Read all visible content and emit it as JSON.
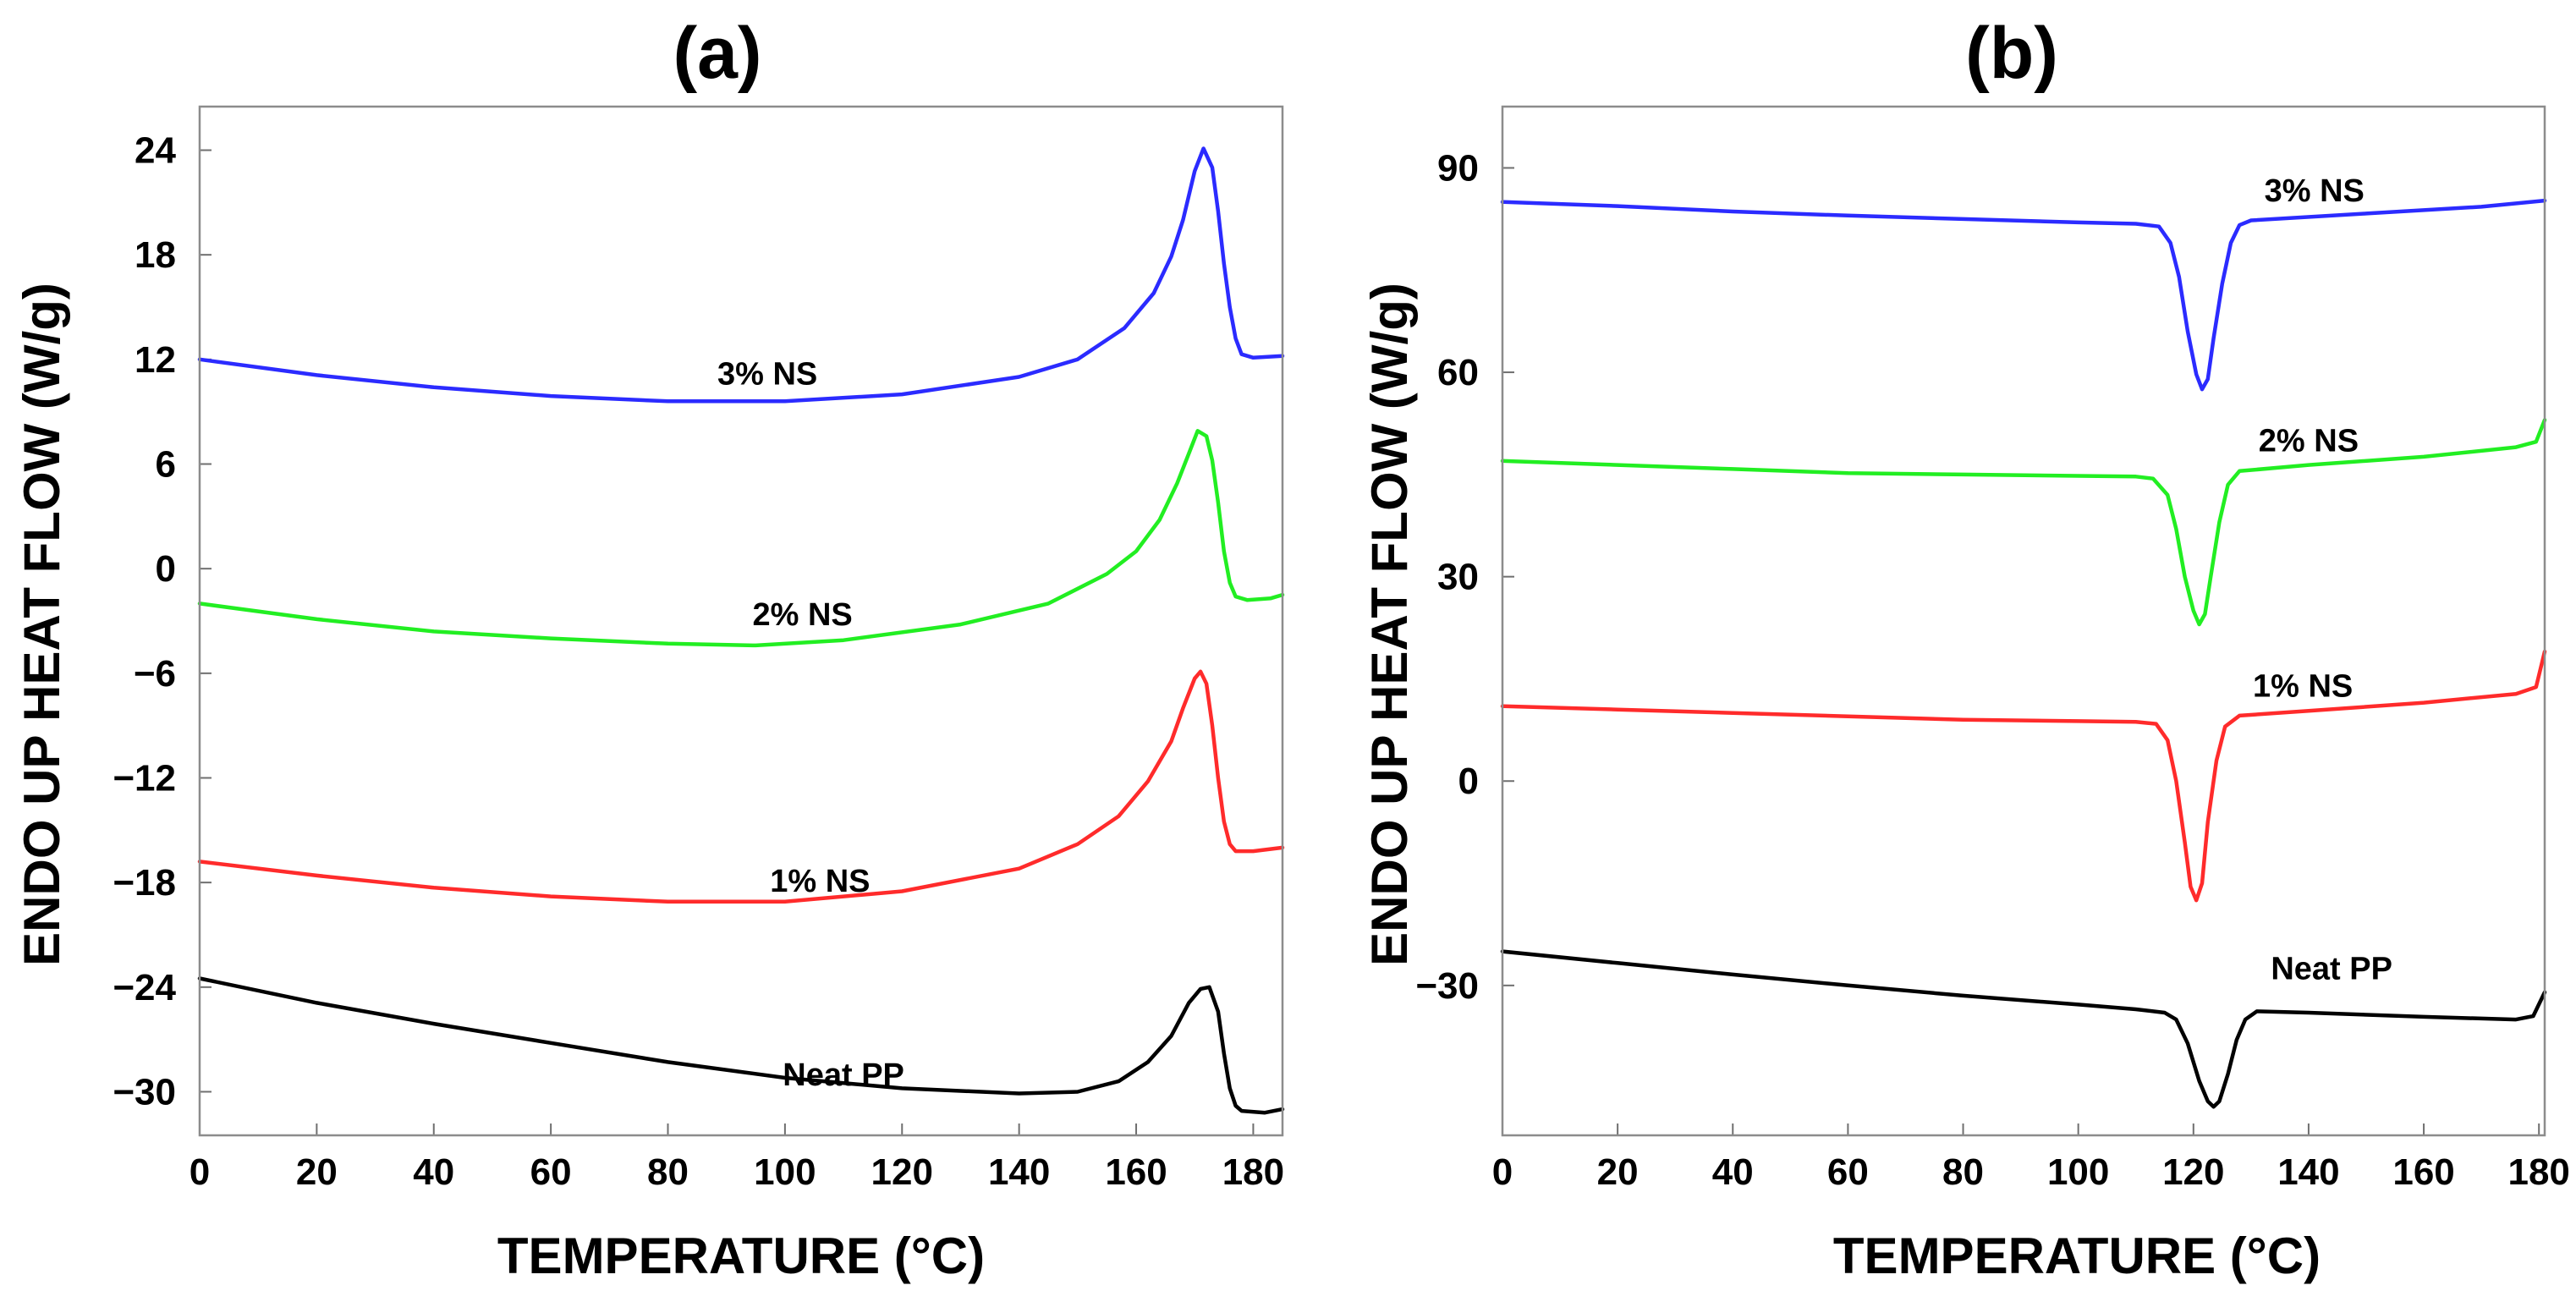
{
  "chart_data": [
    {
      "type": "line",
      "title": "(a)",
      "xlabel": "TEMPERATURE (°C)",
      "ylabel": "ENDO UP HEAT FLOW (W/g)",
      "xlim": [
        0,
        185
      ],
      "ylim": [
        -32.5,
        26.5
      ],
      "xticks": [
        0,
        20,
        40,
        60,
        80,
        100,
        120,
        140,
        160,
        180
      ],
      "xtick_labels": [
        "0",
        "20",
        "40",
        "60",
        "80",
        "100",
        "120",
        "140",
        "160",
        "180"
      ],
      "yticks": [
        24,
        18,
        12,
        6,
        0,
        -6,
        -12,
        -18,
        -24,
        -30
      ],
      "ytick_labels": [
        "24",
        "18",
        "12",
        "6",
        "0",
        "−6",
        "−12",
        "−18",
        "−24",
        "−30"
      ],
      "series": [
        {
          "name": "3% NS",
          "color": "#2b2bff",
          "label_at": [
            97,
            11.2
          ],
          "points": [
            [
              0,
              12.0
            ],
            [
              20,
              11.1
            ],
            [
              40,
              10.4
            ],
            [
              60,
              9.9
            ],
            [
              80,
              9.6
            ],
            [
              100,
              9.6
            ],
            [
              120,
              10.0
            ],
            [
              140,
              11.0
            ],
            [
              150,
              12.0
            ],
            [
              158,
              13.8
            ],
            [
              163,
              15.8
            ],
            [
              166,
              17.9
            ],
            [
              168,
              20.0
            ],
            [
              170,
              22.8
            ],
            [
              171.5,
              24.1
            ],
            [
              173,
              23.0
            ],
            [
              174,
              20.5
            ],
            [
              175,
              17.5
            ],
            [
              176,
              15.0
            ],
            [
              177,
              13.2
            ],
            [
              178,
              12.3
            ],
            [
              180,
              12.1
            ],
            [
              185,
              12.2
            ]
          ]
        },
        {
          "name": "2% NS",
          "color": "#22ee22",
          "label_at": [
            103,
            -2.6
          ],
          "points": [
            [
              0,
              -2.0
            ],
            [
              20,
              -2.9
            ],
            [
              40,
              -3.6
            ],
            [
              60,
              -4.0
            ],
            [
              80,
              -4.3
            ],
            [
              95,
              -4.4
            ],
            [
              110,
              -4.1
            ],
            [
              130,
              -3.2
            ],
            [
              145,
              -2.0
            ],
            [
              155,
              -0.3
            ],
            [
              160,
              1.0
            ],
            [
              164,
              2.8
            ],
            [
              167,
              4.9
            ],
            [
              169,
              6.6
            ],
            [
              170.5,
              7.9
            ],
            [
              172,
              7.6
            ],
            [
              173,
              6.2
            ],
            [
              174,
              3.8
            ],
            [
              175,
              1.0
            ],
            [
              176,
              -0.8
            ],
            [
              177,
              -1.6
            ],
            [
              179,
              -1.8
            ],
            [
              183,
              -1.7
            ],
            [
              185,
              -1.5
            ]
          ]
        },
        {
          "name": "1% NS",
          "color": "#ff2b2b",
          "label_at": [
            106,
            -17.9
          ],
          "points": [
            [
              0,
              -16.8
            ],
            [
              20,
              -17.6
            ],
            [
              40,
              -18.3
            ],
            [
              60,
              -18.8
            ],
            [
              80,
              -19.1
            ],
            [
              100,
              -19.1
            ],
            [
              120,
              -18.5
            ],
            [
              140,
              -17.2
            ],
            [
              150,
              -15.8
            ],
            [
              157,
              -14.2
            ],
            [
              162,
              -12.2
            ],
            [
              166,
              -9.9
            ],
            [
              168,
              -8.0
            ],
            [
              170,
              -6.3
            ],
            [
              171,
              -5.9
            ],
            [
              172,
              -6.6
            ],
            [
              173,
              -9.0
            ],
            [
              174,
              -12.0
            ],
            [
              175,
              -14.5
            ],
            [
              176,
              -15.8
            ],
            [
              177,
              -16.2
            ],
            [
              180,
              -16.2
            ],
            [
              185,
              -16.0
            ]
          ]
        },
        {
          "name": "Neat PP",
          "color": "#000000",
          "label_at": [
            110,
            -29.0
          ],
          "points": [
            [
              0,
              -23.5
            ],
            [
              20,
              -24.9
            ],
            [
              40,
              -26.1
            ],
            [
              60,
              -27.2
            ],
            [
              80,
              -28.3
            ],
            [
              100,
              -29.2
            ],
            [
              120,
              -29.8
            ],
            [
              140,
              -30.1
            ],
            [
              150,
              -30.0
            ],
            [
              157,
              -29.4
            ],
            [
              162,
              -28.3
            ],
            [
              166,
              -26.8
            ],
            [
              169,
              -24.9
            ],
            [
              171,
              -24.1
            ],
            [
              172.5,
              -24.0
            ],
            [
              174,
              -25.4
            ],
            [
              175,
              -27.8
            ],
            [
              176,
              -29.8
            ],
            [
              177,
              -30.8
            ],
            [
              178,
              -31.1
            ],
            [
              182,
              -31.2
            ],
            [
              185,
              -31.0
            ]
          ]
        }
      ]
    },
    {
      "type": "line",
      "title": "(b)",
      "xlabel": "TEMPERATURE (°C)",
      "ylabel": "ENDO UP HEAT FLOW (W/g)",
      "xlim": [
        0,
        181
      ],
      "ylim": [
        -52,
        99
      ],
      "xticks": [
        0,
        20,
        40,
        60,
        80,
        100,
        120,
        140,
        160,
        180
      ],
      "xtick_labels": [
        "0",
        "20",
        "40",
        "60",
        "80",
        "100",
        "120",
        "140",
        "160",
        "180"
      ],
      "yticks": [
        90,
        60,
        30,
        0,
        -30
      ],
      "ytick_labels": [
        "90",
        "60",
        "30",
        "0",
        "−30"
      ],
      "series": [
        {
          "name": "3% NS",
          "color": "#2b2bff",
          "label_at": [
            141,
            86.7
          ],
          "points": [
            [
              0,
              85.0
            ],
            [
              20,
              84.4
            ],
            [
              40,
              83.6
            ],
            [
              60,
              83.0
            ],
            [
              80,
              82.5
            ],
            [
              100,
              82.0
            ],
            [
              110,
              81.8
            ],
            [
              114,
              81.4
            ],
            [
              116,
              79.0
            ],
            [
              117.5,
              74.0
            ],
            [
              119,
              66.0
            ],
            [
              120.5,
              59.7
            ],
            [
              121.5,
              57.5
            ],
            [
              122.5,
              59.0
            ],
            [
              123.5,
              65.0
            ],
            [
              125,
              73.0
            ],
            [
              126.5,
              79.0
            ],
            [
              128,
              81.6
            ],
            [
              130,
              82.3
            ],
            [
              150,
              83.3
            ],
            [
              170,
              84.3
            ],
            [
              181,
              85.2
            ]
          ]
        },
        {
          "name": "2% NS",
          "color": "#22ee22",
          "label_at": [
            140,
            50.0
          ],
          "points": [
            [
              0,
              47.0
            ],
            [
              20,
              46.4
            ],
            [
              40,
              45.8
            ],
            [
              60,
              45.2
            ],
            [
              80,
              45.0
            ],
            [
              100,
              44.8
            ],
            [
              110,
              44.7
            ],
            [
              113,
              44.4
            ],
            [
              115.5,
              42.0
            ],
            [
              117,
              37.0
            ],
            [
              118.5,
              30.0
            ],
            [
              120,
              25.0
            ],
            [
              121,
              23.0
            ],
            [
              122,
              24.5
            ],
            [
              123,
              30.0
            ],
            [
              124.5,
              38.0
            ],
            [
              126,
              43.5
            ],
            [
              128,
              45.5
            ],
            [
              140,
              46.4
            ],
            [
              160,
              47.6
            ],
            [
              176,
              49.0
            ],
            [
              179.5,
              49.8
            ],
            [
              181,
              53.0
            ]
          ]
        },
        {
          "name": "1% NS",
          "color": "#ff2b2b",
          "label_at": [
            139,
            14.0
          ],
          "points": [
            [
              0,
              11.0
            ],
            [
              20,
              10.5
            ],
            [
              40,
              10.0
            ],
            [
              60,
              9.5
            ],
            [
              80,
              9.0
            ],
            [
              100,
              8.8
            ],
            [
              110,
              8.7
            ],
            [
              113.5,
              8.4
            ],
            [
              115.5,
              6.0
            ],
            [
              117,
              0.0
            ],
            [
              118.5,
              -9.0
            ],
            [
              119.5,
              -15.5
            ],
            [
              120.5,
              -17.5
            ],
            [
              121.5,
              -15.0
            ],
            [
              122.5,
              -6.0
            ],
            [
              124,
              3.0
            ],
            [
              125.5,
              8.0
            ],
            [
              128,
              9.6
            ],
            [
              140,
              10.3
            ],
            [
              160,
              11.5
            ],
            [
              176,
              12.8
            ],
            [
              179.5,
              13.8
            ],
            [
              181,
              19.0
            ]
          ]
        },
        {
          "name": "Neat PP",
          "color": "#000000",
          "label_at": [
            144,
            -27.5
          ],
          "points": [
            [
              0,
              -25.0
            ],
            [
              20,
              -26.7
            ],
            [
              40,
              -28.4
            ],
            [
              60,
              -30.0
            ],
            [
              80,
              -31.5
            ],
            [
              100,
              -32.8
            ],
            [
              110,
              -33.5
            ],
            [
              115,
              -34.0
            ],
            [
              117,
              -35.0
            ],
            [
              119,
              -38.5
            ],
            [
              121,
              -44.0
            ],
            [
              122.5,
              -47.0
            ],
            [
              123.5,
              -47.8
            ],
            [
              124.5,
              -47.0
            ],
            [
              126,
              -43.0
            ],
            [
              127.5,
              -38.0
            ],
            [
              129,
              -35.0
            ],
            [
              131,
              -33.8
            ],
            [
              140,
              -34.0
            ],
            [
              160,
              -34.6
            ],
            [
              176,
              -35.0
            ],
            [
              179,
              -34.5
            ],
            [
              181,
              -31.0
            ]
          ]
        }
      ]
    }
  ]
}
